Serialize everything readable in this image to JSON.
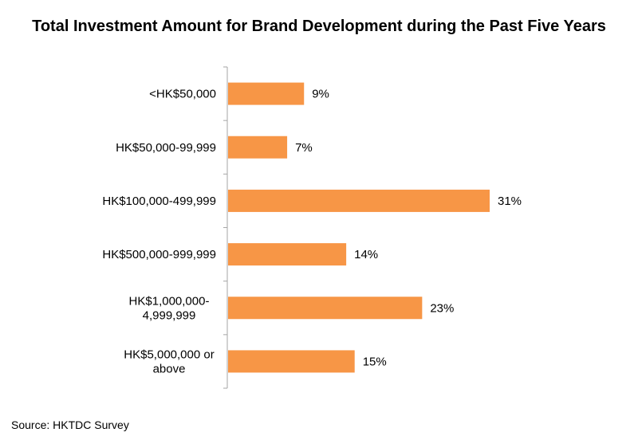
{
  "chart_data": {
    "type": "bar",
    "orientation": "horizontal",
    "title": "Total Investment Amount for Brand Development during the Past Five Years",
    "categories": [
      [
        "<HK$50,000"
      ],
      [
        "HK$50,000-99,999"
      ],
      [
        "HK$100,000-499,999"
      ],
      [
        "HK$500,000-999,999"
      ],
      [
        "HK$1,000,000-",
        "4,999,999"
      ],
      [
        "HK$5,000,000 or",
        "above"
      ]
    ],
    "values": [
      9,
      7,
      31,
      14,
      23,
      15
    ],
    "value_labels": [
      "9%",
      "7%",
      "31%",
      "14%",
      "23%",
      "15%"
    ],
    "unit": "%",
    "xlim": [
      0,
      35
    ],
    "bar_color": "#F79646",
    "axis_color": "#A6A6A6",
    "grid": false,
    "legend": "none"
  },
  "source": "Source: HKTDC Survey"
}
